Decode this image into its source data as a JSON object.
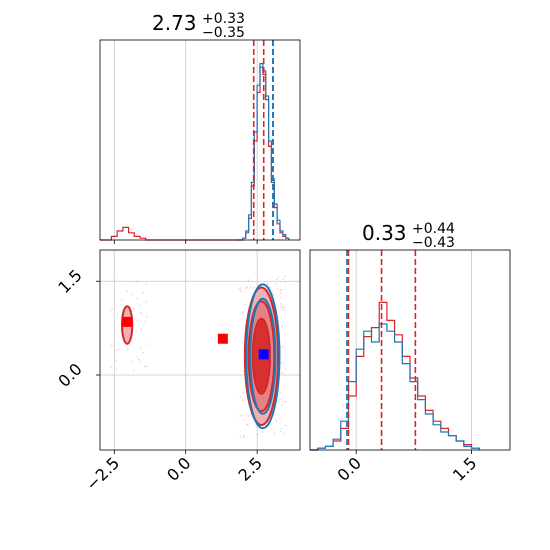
{
  "chart_data": [
    {
      "panel": "marginal-x",
      "type": "histogram",
      "title": {
        "value": "2.73",
        "plus": "+0.33",
        "minus": "−0.35"
      },
      "xlim": [
        -3.0,
        4.0
      ],
      "colors": {
        "blue": "#1f77b4",
        "red": "#d62728"
      },
      "quantile_lines": {
        "red": [
          2.38,
          2.73,
          3.06
        ],
        "blue": [
          3.05
        ]
      },
      "grid": true,
      "series": [
        {
          "color": "red",
          "bins": [
            [
              -3.0,
              0.0
            ],
            [
              -2.8,
              0.0
            ],
            [
              -2.6,
              0.02
            ],
            [
              -2.4,
              0.05
            ],
            [
              -2.2,
              0.07
            ],
            [
              -2.0,
              0.04
            ],
            [
              -1.8,
              0.02
            ],
            [
              -1.6,
              0.01
            ],
            [
              -1.4,
              0.0
            ],
            [
              1.8,
              0.0
            ],
            [
              2.0,
              0.01
            ],
            [
              2.1,
              0.05
            ],
            [
              2.2,
              0.12
            ],
            [
              2.3,
              0.3
            ],
            [
              2.4,
              0.55
            ],
            [
              2.5,
              0.82
            ],
            [
              2.6,
              0.96
            ],
            [
              2.7,
              0.92
            ],
            [
              2.8,
              0.78
            ],
            [
              2.9,
              0.52
            ],
            [
              3.0,
              0.32
            ],
            [
              3.1,
              0.18
            ],
            [
              3.2,
              0.09
            ],
            [
              3.3,
              0.04
            ],
            [
              3.4,
              0.02
            ],
            [
              3.5,
              0.01
            ],
            [
              3.6,
              0.0
            ]
          ]
        },
        {
          "color": "blue",
          "bins": [
            [
              1.8,
              0.0
            ],
            [
              2.0,
              0.01
            ],
            [
              2.1,
              0.04
            ],
            [
              2.2,
              0.14
            ],
            [
              2.3,
              0.32
            ],
            [
              2.4,
              0.6
            ],
            [
              2.5,
              0.86
            ],
            [
              2.6,
              0.98
            ],
            [
              2.7,
              0.94
            ],
            [
              2.8,
              0.8
            ],
            [
              2.9,
              0.55
            ],
            [
              3.0,
              0.34
            ],
            [
              3.1,
              0.2
            ],
            [
              3.2,
              0.11
            ],
            [
              3.3,
              0.05
            ],
            [
              3.4,
              0.03
            ],
            [
              3.5,
              0.01
            ],
            [
              3.6,
              0.0
            ]
          ]
        }
      ]
    },
    {
      "panel": "joint",
      "type": "contour",
      "xlim": [
        -3.0,
        4.0
      ],
      "ylim": [
        -1.2,
        2.0
      ],
      "yticks": [
        "1.5",
        "0.0"
      ],
      "yticks_values": [
        1.5,
        0.0
      ],
      "xticks": [
        "−2.5",
        "0.0",
        "2.5"
      ],
      "xticks_values": [
        -2.5,
        0.0,
        2.5
      ],
      "grid": true,
      "contours": [
        {
          "color": "red",
          "cx": 2.65,
          "cy": 0.3,
          "rx": [
            0.58,
            0.45,
            0.3
          ],
          "ry": [
            1.1,
            0.88,
            0.6
          ]
        },
        {
          "color": "blue",
          "cx": 2.7,
          "cy": 0.3,
          "rx": [
            0.58,
            0.44
          ],
          "ry": [
            1.15,
            0.92
          ]
        },
        {
          "color": "red",
          "cx": -2.05,
          "cy": 0.8,
          "rx": [
            0.18
          ],
          "ry": [
            0.3
          ]
        }
      ],
      "markers": [
        {
          "color": "red",
          "x": -2.05,
          "y": 0.85
        },
        {
          "color": "red",
          "x": 1.3,
          "y": 0.58
        },
        {
          "color": "blue",
          "x": 2.73,
          "y": 0.33
        }
      ]
    },
    {
      "panel": "marginal-y",
      "type": "histogram",
      "title": {
        "value": "0.33",
        "plus": "+0.44",
        "minus": "−0.43"
      },
      "xlim": [
        -0.6,
        2.0
      ],
      "xticks": [
        "0.0",
        "1.5"
      ],
      "xticks_values": [
        0.0,
        1.5
      ],
      "quantile_lines": {
        "red": [
          -0.1,
          0.33,
          0.77
        ],
        "blue": [
          -0.12
        ]
      },
      "grid": true,
      "series": [
        {
          "color": "red",
          "bins": [
            [
              -0.6,
              0.0
            ],
            [
              -0.5,
              0.01
            ],
            [
              -0.4,
              0.02
            ],
            [
              -0.3,
              0.05
            ],
            [
              -0.2,
              0.12
            ],
            [
              -0.1,
              0.3
            ],
            [
              0.0,
              0.52
            ],
            [
              0.1,
              0.63
            ],
            [
              0.2,
              0.68
            ],
            [
              0.3,
              0.82
            ],
            [
              0.4,
              0.72
            ],
            [
              0.5,
              0.64
            ],
            [
              0.6,
              0.52
            ],
            [
              0.7,
              0.4
            ],
            [
              0.8,
              0.3
            ],
            [
              0.9,
              0.22
            ],
            [
              1.0,
              0.16
            ],
            [
              1.1,
              0.12
            ],
            [
              1.2,
              0.08
            ],
            [
              1.3,
              0.05
            ],
            [
              1.4,
              0.03
            ],
            [
              1.5,
              0.01
            ],
            [
              1.6,
              0.0
            ]
          ]
        },
        {
          "color": "blue",
          "bins": [
            [
              -0.6,
              0.0
            ],
            [
              -0.5,
              0.01
            ],
            [
              -0.4,
              0.02
            ],
            [
              -0.3,
              0.06
            ],
            [
              -0.2,
              0.16
            ],
            [
              -0.1,
              0.38
            ],
            [
              0.0,
              0.56
            ],
            [
              0.1,
              0.66
            ],
            [
              0.2,
              0.6
            ],
            [
              0.3,
              0.7
            ],
            [
              0.4,
              0.66
            ],
            [
              0.5,
              0.6
            ],
            [
              0.6,
              0.48
            ],
            [
              0.7,
              0.38
            ],
            [
              0.8,
              0.28
            ],
            [
              0.9,
              0.2
            ],
            [
              1.0,
              0.14
            ],
            [
              1.1,
              0.1
            ],
            [
              1.2,
              0.08
            ],
            [
              1.3,
              0.05
            ],
            [
              1.4,
              0.02
            ],
            [
              1.5,
              0.01
            ],
            [
              1.6,
              0.0
            ]
          ]
        }
      ]
    }
  ]
}
